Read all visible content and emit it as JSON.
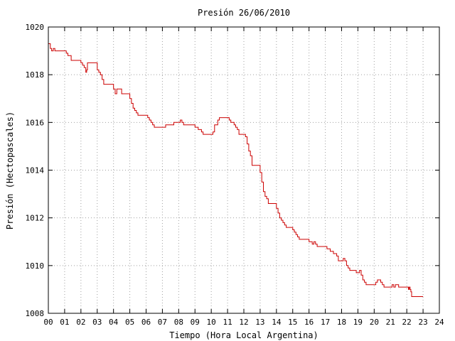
{
  "chart_data": {
    "type": "line",
    "title": "Presión 26/06/2010",
    "xlabel": "Tiempo (Hora Local Argentina)",
    "ylabel": "Presión (Hectopascales)",
    "xlim": [
      0,
      24
    ],
    "ylim": [
      1008,
      1020
    ],
    "grid": true,
    "x_ticks": [
      "00",
      "01",
      "02",
      "03",
      "04",
      "05",
      "06",
      "07",
      "08",
      "09",
      "10",
      "11",
      "12",
      "13",
      "14",
      "15",
      "16",
      "17",
      "18",
      "19",
      "20",
      "21",
      "22",
      "23",
      "24"
    ],
    "y_ticks": [
      "1008",
      "1010",
      "1012",
      "1014",
      "1016",
      "1018",
      "1020"
    ],
    "colors": {
      "line": "#cc0000",
      "grid": "#a0a0a0",
      "axis": "#000000"
    },
    "series": [
      {
        "x": [
          0.0,
          0.05,
          0.12,
          0.2,
          0.3,
          0.4,
          0.5,
          1.0,
          1.1,
          1.2,
          1.4,
          1.5,
          1.8,
          1.9,
          2.0,
          2.1,
          2.2,
          2.3,
          2.35,
          2.4,
          2.5,
          2.6,
          2.9,
          3.0,
          3.1,
          3.2,
          3.3,
          3.4,
          3.5,
          3.9,
          4.0,
          4.1,
          4.2,
          4.4,
          4.5,
          4.9,
          5.0,
          5.1,
          5.2,
          5.3,
          5.4,
          5.5,
          5.6,
          6.0,
          6.1,
          6.2,
          6.3,
          6.4,
          6.5,
          7.0,
          7.1,
          7.2,
          7.5,
          7.7,
          7.8,
          7.9,
          8.0,
          8.1,
          8.2,
          8.3,
          8.9,
          9.0,
          9.1,
          9.2,
          9.4,
          9.5,
          10.0,
          10.1,
          10.2,
          10.4,
          10.5,
          11.0,
          11.1,
          11.2,
          11.4,
          11.5,
          11.6,
          11.7,
          12.0,
          12.1,
          12.2,
          12.3,
          12.4,
          12.5,
          12.9,
          13.0,
          13.1,
          13.2,
          13.3,
          13.4,
          13.5,
          13.9,
          14.0,
          14.1,
          14.2,
          14.3,
          14.4,
          14.5,
          14.6,
          14.7,
          15.0,
          15.1,
          15.2,
          15.3,
          15.4,
          15.5,
          15.6,
          16.0,
          16.1,
          16.2,
          16.3,
          16.4,
          16.5,
          16.9,
          17.0,
          17.1,
          17.3,
          17.5,
          17.7,
          17.8,
          17.9,
          18.0,
          18.1,
          18.2,
          18.3,
          18.4,
          18.5,
          18.9,
          19.0,
          19.1,
          19.2,
          19.3,
          19.4,
          19.5,
          19.9,
          20.0,
          20.1,
          20.2,
          20.4,
          20.5,
          20.6,
          20.7,
          21.0,
          21.1,
          21.2,
          21.3,
          21.4,
          21.5,
          21.6,
          21.7,
          22.0,
          22.1,
          22.15,
          22.2,
          22.25,
          22.3,
          22.4,
          22.6,
          23.0
        ],
        "y": [
          1019.3,
          1019.3,
          1019.1,
          1019.0,
          1019.1,
          1019.0,
          1019.0,
          1019.0,
          1018.9,
          1018.8,
          1018.6,
          1018.6,
          1018.6,
          1018.6,
          1018.5,
          1018.4,
          1018.3,
          1018.1,
          1018.2,
          1018.5,
          1018.5,
          1018.5,
          1018.5,
          1018.2,
          1018.1,
          1018.0,
          1017.8,
          1017.6,
          1017.6,
          1017.6,
          1017.4,
          1017.2,
          1017.4,
          1017.4,
          1017.2,
          1017.2,
          1017.0,
          1016.8,
          1016.6,
          1016.5,
          1016.4,
          1016.3,
          1016.3,
          1016.3,
          1016.2,
          1016.1,
          1016.0,
          1015.9,
          1015.8,
          1015.8,
          1015.8,
          1015.9,
          1015.9,
          1016.0,
          1016.0,
          1016.0,
          1016.0,
          1016.1,
          1016.0,
          1015.9,
          1015.9,
          1015.8,
          1015.8,
          1015.7,
          1015.6,
          1015.5,
          1015.5,
          1015.6,
          1015.9,
          1016.1,
          1016.2,
          1016.2,
          1016.1,
          1016.0,
          1015.9,
          1015.8,
          1015.7,
          1015.5,
          1015.5,
          1015.4,
          1015.1,
          1014.8,
          1014.6,
          1014.2,
          1014.2,
          1013.9,
          1013.5,
          1013.1,
          1012.9,
          1012.8,
          1012.6,
          1012.6,
          1012.4,
          1012.2,
          1012.0,
          1011.9,
          1011.8,
          1011.7,
          1011.6,
          1011.6,
          1011.5,
          1011.4,
          1011.3,
          1011.2,
          1011.1,
          1011.1,
          1011.1,
          1011.0,
          1011.0,
          1010.9,
          1011.0,
          1010.9,
          1010.8,
          1010.8,
          1010.8,
          1010.7,
          1010.6,
          1010.5,
          1010.4,
          1010.2,
          1010.2,
          1010.2,
          1010.3,
          1010.2,
          1010.0,
          1009.9,
          1009.8,
          1009.7,
          1009.7,
          1009.8,
          1009.6,
          1009.4,
          1009.3,
          1009.2,
          1009.2,
          1009.2,
          1009.3,
          1009.4,
          1009.3,
          1009.2,
          1009.1,
          1009.1,
          1009.1,
          1009.2,
          1009.1,
          1009.2,
          1009.2,
          1009.1,
          1009.1,
          1009.1,
          1009.1,
          1009.0,
          1009.1,
          1009.0,
          1008.9,
          1008.7,
          1008.7,
          1008.7,
          1008.7
        ]
      }
    ]
  }
}
